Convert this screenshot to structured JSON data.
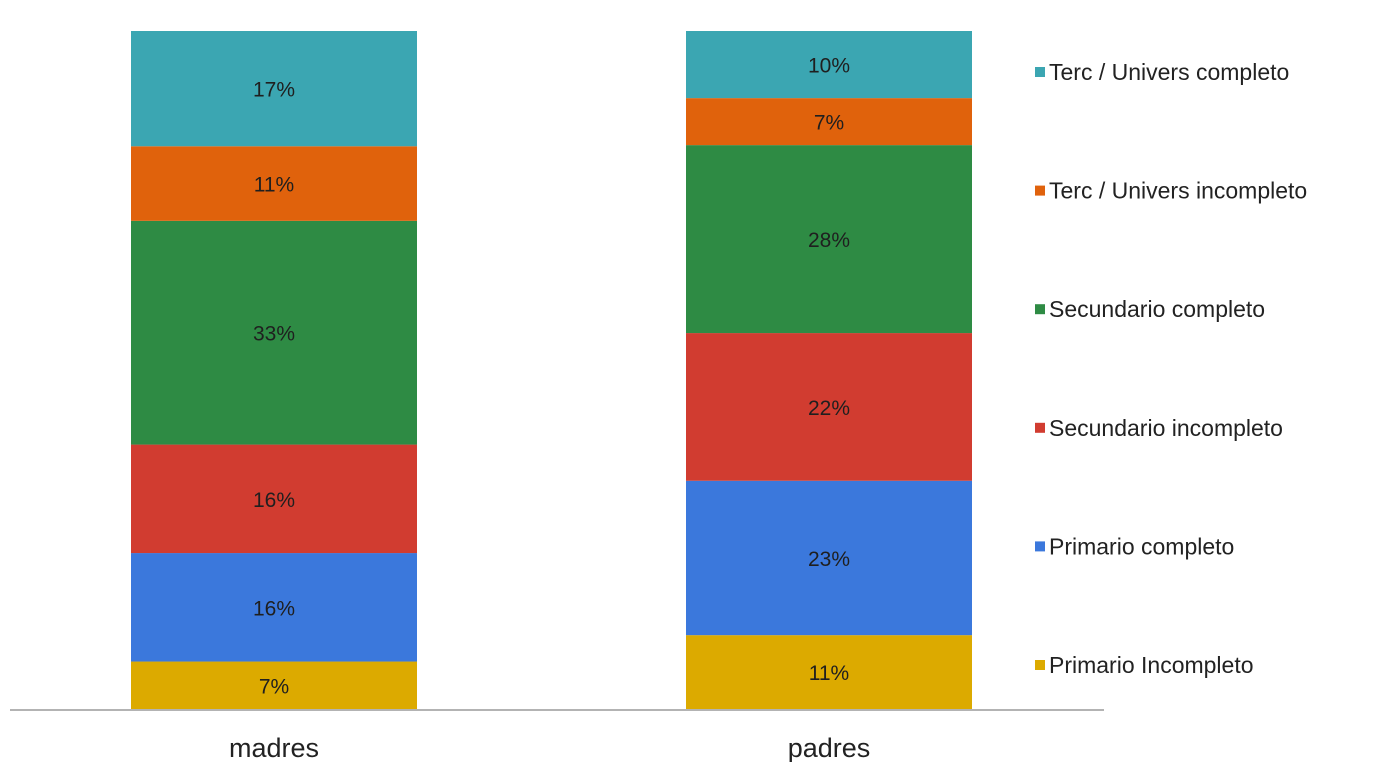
{
  "chart_data": {
    "type": "bar",
    "stacked": true,
    "value_format": "percent",
    "categories": [
      "madres",
      "padres"
    ],
    "ylim": [
      0,
      100
    ],
    "grid": false,
    "legend_position": "right",
    "series": [
      {
        "name": "Primario Incompleto",
        "color": "#dcaa00",
        "values": [
          7,
          11
        ]
      },
      {
        "name": "Primario completo",
        "color": "#3b78dc",
        "values": [
          16,
          23
        ]
      },
      {
        "name": "Secundario incompleto",
        "color": "#d13c30",
        "values": [
          16,
          22
        ]
      },
      {
        "name": "Secundario completo",
        "color": "#2e8b44",
        "values": [
          33,
          28
        ]
      },
      {
        "name": "Terc / Univers incompleto",
        "color": "#e0620c",
        "values": [
          11,
          7
        ]
      },
      {
        "name": "Terc / Univers completo",
        "color": "#3ba6b2",
        "values": [
          17,
          10
        ]
      }
    ],
    "data_labels": [
      [
        "7%",
        "11%"
      ],
      [
        "16%",
        "23%"
      ],
      [
        "16%",
        "22%"
      ],
      [
        "33%",
        "28%"
      ],
      [
        "11%",
        "7%"
      ],
      [
        "17%",
        "10%"
      ]
    ],
    "legend_order": [
      "Terc / Univers completo",
      "Terc / Univers incompleto",
      "Secundario completo",
      "Secundario incompleto",
      "Primario completo",
      "Primario Incompleto"
    ]
  }
}
